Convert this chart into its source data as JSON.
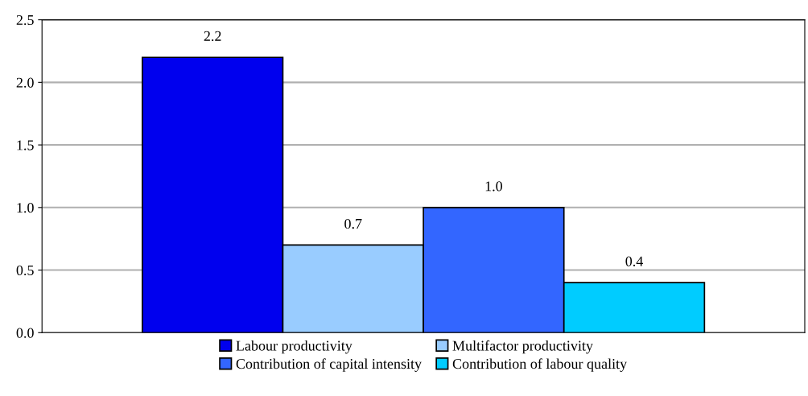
{
  "chart_data": {
    "type": "bar",
    "categories": [
      null
    ],
    "series": [
      {
        "name": "Labour productivity",
        "color": "#0000ee",
        "values": [
          2.2
        ],
        "value_labels": [
          "2.2"
        ]
      },
      {
        "name": "Multifactor productivity",
        "color": "#99ccff",
        "values": [
          0.7
        ],
        "value_labels": [
          "0.7"
        ]
      },
      {
        "name": "Contribution of capital intensity",
        "color": "#3366ff",
        "values": [
          1.0
        ],
        "value_labels": [
          "1.0"
        ]
      },
      {
        "name": "Contribution of labour quality",
        "color": "#00ccff",
        "values": [
          0.4
        ],
        "value_labels": [
          "0.4"
        ]
      }
    ],
    "ylim": [
      0,
      2.5
    ],
    "yticks": [
      {
        "value": 0,
        "label": "0.0"
      },
      {
        "value": 0.5,
        "label": "0.5"
      },
      {
        "value": 1,
        "label": "1.0"
      },
      {
        "value": 1.5,
        "label": "1.5"
      },
      {
        "value": 2,
        "label": "2.0"
      },
      {
        "value": 2.5,
        "label": "2.5"
      }
    ],
    "grid": "y",
    "legend": "bottom"
  }
}
